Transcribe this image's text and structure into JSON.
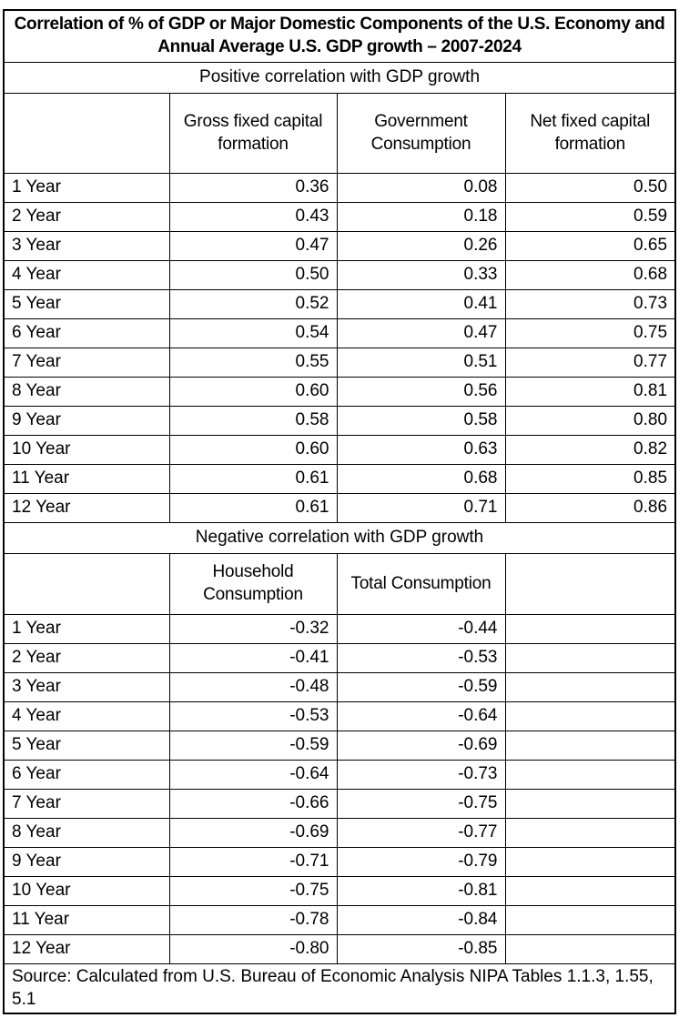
{
  "title": "Correlation of % of GDP or Major Domestic Components of the U.S. Economy and Annual Average U.S. GDP growth – 2007-2024",
  "sections": [
    {
      "header": "Positive correlation with GDP growth",
      "columns": [
        "",
        "Gross fixed capital formation",
        "Government Consumption",
        "Net fixed capital formation"
      ],
      "rows": [
        {
          "label": "1 Year",
          "values": [
            "0.36",
            "0.08",
            "0.50"
          ]
        },
        {
          "label": "2 Year",
          "values": [
            "0.43",
            "0.18",
            "0.59"
          ]
        },
        {
          "label": "3 Year",
          "values": [
            "0.47",
            "0.26",
            "0.65"
          ]
        },
        {
          "label": "4 Year",
          "values": [
            "0.50",
            "0.33",
            "0.68"
          ]
        },
        {
          "label": "5 Year",
          "values": [
            "0.52",
            "0.41",
            "0.73"
          ]
        },
        {
          "label": "6 Year",
          "values": [
            "0.54",
            "0.47",
            "0.75"
          ]
        },
        {
          "label": "7 Year",
          "values": [
            "0.55",
            "0.51",
            "0.77"
          ]
        },
        {
          "label": "8 Year",
          "values": [
            "0.60",
            "0.56",
            "0.81"
          ]
        },
        {
          "label": "9 Year",
          "values": [
            "0.58",
            "0.58",
            "0.80"
          ]
        },
        {
          "label": "10 Year",
          "values": [
            "0.60",
            "0.63",
            "0.82"
          ]
        },
        {
          "label": "11 Year",
          "values": [
            "0.61",
            "0.68",
            "0.85"
          ]
        },
        {
          "label": "12 Year",
          "values": [
            "0.61",
            "0.71",
            "0.86"
          ]
        }
      ]
    },
    {
      "header": "Negative correlation with GDP growth",
      "columns": [
        "",
        "Household Consumption",
        "Total Consumption",
        ""
      ],
      "rows": [
        {
          "label": "1 Year",
          "values": [
            "-0.32",
            "-0.44",
            ""
          ]
        },
        {
          "label": "2 Year",
          "values": [
            "-0.41",
            "-0.53",
            ""
          ]
        },
        {
          "label": "3 Year",
          "values": [
            "-0.48",
            "-0.59",
            ""
          ]
        },
        {
          "label": "4 Year",
          "values": [
            "-0.53",
            "-0.64",
            ""
          ]
        },
        {
          "label": "5 Year",
          "values": [
            "-0.59",
            "-0.69",
            ""
          ]
        },
        {
          "label": "6 Year",
          "values": [
            "-0.64",
            "-0.73",
            ""
          ]
        },
        {
          "label": "7 Year",
          "values": [
            "-0.66",
            "-0.75",
            ""
          ]
        },
        {
          "label": "8 Year",
          "values": [
            "-0.69",
            "-0.77",
            ""
          ]
        },
        {
          "label": "9 Year",
          "values": [
            "-0.71",
            "-0.79",
            ""
          ]
        },
        {
          "label": "10 Year",
          "values": [
            "-0.75",
            "-0.81",
            ""
          ]
        },
        {
          "label": "11 Year",
          "values": [
            "-0.78",
            "-0.84",
            ""
          ]
        },
        {
          "label": "12 Year",
          "values": [
            "-0.80",
            "-0.85",
            ""
          ]
        }
      ]
    }
  ],
  "source": "Source: Calculated from U.S. Bureau of Economic Analysis NIPA Tables 1.1.3, 1.55, 5.1"
}
